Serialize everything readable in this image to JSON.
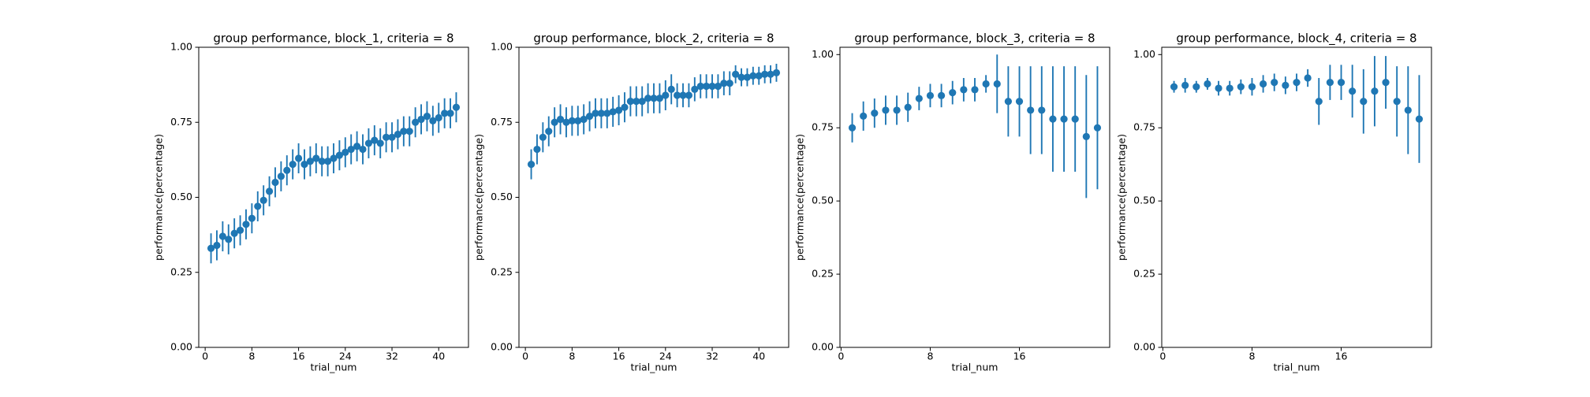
{
  "chart_data": [
    {
      "type": "errorbar",
      "title": "group performance, block_1, criteria = 8",
      "xlabel": "trial_num",
      "ylabel": "performance(percentage)",
      "color": "#1f77b4",
      "x": [
        1,
        2,
        3,
        4,
        5,
        6,
        7,
        8,
        9,
        10,
        11,
        12,
        13,
        14,
        15,
        16,
        17,
        18,
        19,
        20,
        21,
        22,
        23,
        24,
        25,
        26,
        27,
        28,
        29,
        30,
        31,
        32,
        33,
        34,
        35,
        36,
        37,
        38,
        39,
        40,
        41,
        42,
        43
      ],
      "values": [
        0.33,
        0.34,
        0.37,
        0.36,
        0.38,
        0.39,
        0.41,
        0.43,
        0.47,
        0.49,
        0.52,
        0.55,
        0.57,
        0.59,
        0.61,
        0.63,
        0.61,
        0.62,
        0.63,
        0.62,
        0.62,
        0.63,
        0.64,
        0.65,
        0.66,
        0.67,
        0.66,
        0.68,
        0.69,
        0.68,
        0.7,
        0.7,
        0.71,
        0.72,
        0.72,
        0.75,
        0.76,
        0.77,
        0.755,
        0.765,
        0.78,
        0.78,
        0.8
      ],
      "errors": [
        0.05,
        0.05,
        0.05,
        0.05,
        0.05,
        0.05,
        0.05,
        0.05,
        0.05,
        0.05,
        0.05,
        0.05,
        0.05,
        0.05,
        0.05,
        0.05,
        0.05,
        0.05,
        0.05,
        0.05,
        0.05,
        0.05,
        0.05,
        0.05,
        0.05,
        0.05,
        0.05,
        0.05,
        0.05,
        0.05,
        0.05,
        0.05,
        0.05,
        0.05,
        0.05,
        0.05,
        0.05,
        0.05,
        0.05,
        0.05,
        0.05,
        0.05,
        0.05
      ],
      "xlim": [
        -1.1,
        45.1
      ],
      "ylim": [
        0,
        1
      ],
      "xticks": [
        0,
        8,
        16,
        24,
        32,
        40
      ],
      "yticks": [
        {
          "value": 0,
          "label": "0.00"
        },
        {
          "value": 0.25,
          "label": "0.25"
        },
        {
          "value": 0.5,
          "label": "0.50"
        },
        {
          "value": 0.75,
          "label": "0.75"
        },
        {
          "value": 1,
          "label": "1.00"
        }
      ]
    },
    {
      "type": "errorbar",
      "title": "group performance, block_2, criteria = 8",
      "xlabel": "trial_num",
      "ylabel": "performance(percentage)",
      "color": "#1f77b4",
      "x": [
        1,
        2,
        3,
        4,
        5,
        6,
        7,
        8,
        9,
        10,
        11,
        12,
        13,
        14,
        15,
        16,
        17,
        18,
        19,
        20,
        21,
        22,
        23,
        24,
        25,
        26,
        27,
        28,
        29,
        30,
        31,
        32,
        33,
        34,
        35,
        36,
        37,
        38,
        39,
        40,
        41,
        42,
        43
      ],
      "values": [
        0.61,
        0.66,
        0.7,
        0.72,
        0.75,
        0.76,
        0.75,
        0.755,
        0.755,
        0.76,
        0.77,
        0.78,
        0.78,
        0.78,
        0.785,
        0.79,
        0.8,
        0.82,
        0.82,
        0.82,
        0.83,
        0.83,
        0.83,
        0.84,
        0.86,
        0.84,
        0.84,
        0.84,
        0.86,
        0.87,
        0.87,
        0.87,
        0.87,
        0.88,
        0.88,
        0.91,
        0.9,
        0.9,
        0.905,
        0.905,
        0.91,
        0.91,
        0.915
      ],
      "errors": [
        0.05,
        0.05,
        0.05,
        0.05,
        0.05,
        0.05,
        0.05,
        0.05,
        0.05,
        0.05,
        0.05,
        0.05,
        0.05,
        0.05,
        0.05,
        0.05,
        0.05,
        0.05,
        0.05,
        0.05,
        0.05,
        0.05,
        0.05,
        0.05,
        0.05,
        0.04,
        0.04,
        0.04,
        0.04,
        0.04,
        0.04,
        0.04,
        0.04,
        0.04,
        0.04,
        0.03,
        0.03,
        0.03,
        0.03,
        0.03,
        0.03,
        0.03,
        0.03
      ],
      "xlim": [
        -1.1,
        45.1
      ],
      "ylim": [
        0,
        1
      ],
      "xticks": [
        0,
        8,
        16,
        24,
        32,
        40
      ],
      "yticks": [
        {
          "value": 0,
          "label": "0.00"
        },
        {
          "value": 0.25,
          "label": "0.25"
        },
        {
          "value": 0.5,
          "label": "0.50"
        },
        {
          "value": 0.75,
          "label": "0.75"
        },
        {
          "value": 1,
          "label": "1.00"
        }
      ]
    },
    {
      "type": "errorbar",
      "title": "group performance, block_3, criteria = 8",
      "xlabel": "trial_num",
      "ylabel": "performance(percentage)",
      "color": "#1f77b4",
      "x": [
        1,
        2,
        3,
        4,
        5,
        6,
        7,
        8,
        9,
        10,
        11,
        12,
        13,
        14,
        15,
        16,
        17,
        18,
        19,
        20,
        21,
        22,
        23
      ],
      "values": [
        0.75,
        0.79,
        0.8,
        0.81,
        0.81,
        0.82,
        0.85,
        0.86,
        0.86,
        0.87,
        0.88,
        0.88,
        0.9,
        0.9,
        0.84,
        0.84,
        0.81,
        0.81,
        0.78,
        0.78,
        0.78,
        0.72,
        0.75
      ],
      "errors": [
        0.05,
        0.05,
        0.05,
        0.05,
        0.05,
        0.05,
        0.04,
        0.04,
        0.04,
        0.04,
        0.04,
        0.04,
        0.03,
        0.1,
        0.12,
        0.12,
        0.15,
        0.15,
        0.18,
        0.18,
        0.18,
        0.21,
        0.21
      ],
      "xlim": [
        -0.1,
        24.1
      ],
      "ylim": [
        0,
        1.025
      ],
      "xticks": [
        0,
        8,
        16
      ],
      "yticks": [
        {
          "value": 0,
          "label": "0.00"
        },
        {
          "value": 0.25,
          "label": "0.25"
        },
        {
          "value": 0.5,
          "label": "0.50"
        },
        {
          "value": 0.75,
          "label": "0.75"
        },
        {
          "value": 1,
          "label": "1.00"
        }
      ]
    },
    {
      "type": "errorbar",
      "title": "group performance, block_4, criteria = 8",
      "xlabel": "trial_num",
      "ylabel": "performance(percentage)",
      "color": "#1f77b4",
      "x": [
        1,
        2,
        3,
        4,
        5,
        6,
        7,
        8,
        9,
        10,
        11,
        12,
        13,
        14,
        15,
        16,
        17,
        18,
        19,
        20,
        21,
        22,
        23
      ],
      "values": [
        0.89,
        0.895,
        0.89,
        0.9,
        0.885,
        0.885,
        0.89,
        0.89,
        0.9,
        0.905,
        0.895,
        0.905,
        0.92,
        0.84,
        0.905,
        0.905,
        0.875,
        0.84,
        0.875,
        0.905,
        0.84,
        0.81,
        0.78
      ],
      "errors": [
        0.02,
        0.025,
        0.02,
        0.02,
        0.025,
        0.025,
        0.025,
        0.03,
        0.03,
        0.03,
        0.03,
        0.03,
        0.03,
        0.08,
        0.06,
        0.06,
        0.09,
        0.11,
        0.12,
        0.09,
        0.12,
        0.15,
        0.15
      ],
      "xlim": [
        -0.1,
        24.1
      ],
      "ylim": [
        0,
        1.025
      ],
      "xticks": [
        0,
        8,
        16
      ],
      "yticks": [
        {
          "value": 0,
          "label": "0.00"
        },
        {
          "value": 0.25,
          "label": "0.25"
        },
        {
          "value": 0.5,
          "label": "0.50"
        },
        {
          "value": 0.75,
          "label": "0.75"
        },
        {
          "value": 1,
          "label": "1.00"
        }
      ]
    }
  ]
}
